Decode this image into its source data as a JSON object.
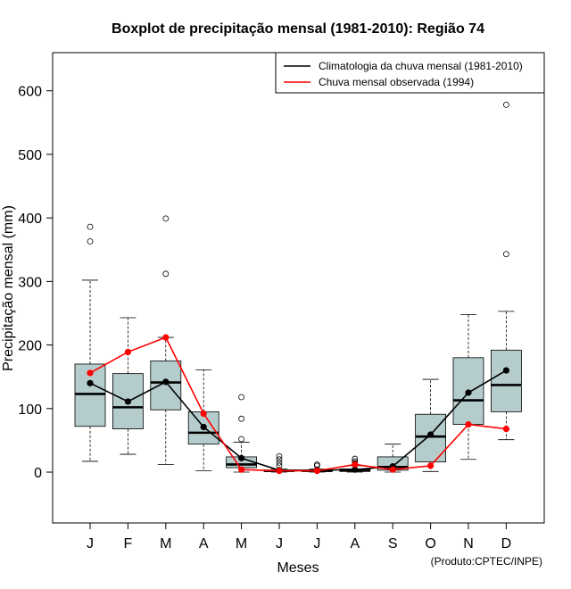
{
  "chart_data": {
    "type": "boxplot",
    "title": "Boxplot de precipitação mensal (1981-2010): Região 74",
    "xlabel": "Meses",
    "ylabel": "Precipitação mensal (mm)",
    "ylim": [
      -80,
      660
    ],
    "yticks": [
      0,
      100,
      200,
      300,
      400,
      500,
      600
    ],
    "categories": [
      "J",
      "F",
      "M",
      "A",
      "M",
      "J",
      "J",
      "A",
      "S",
      "O",
      "N",
      "D"
    ],
    "box_color": "#b5cccc",
    "boxes": [
      {
        "whisker_low": 17,
        "q1": 72,
        "median": 123,
        "q3": 170,
        "whisker_high": 302,
        "outliers": [
          363,
          386
        ]
      },
      {
        "whisker_low": 28,
        "q1": 68,
        "median": 102,
        "q3": 155,
        "whisker_high": 243,
        "outliers": []
      },
      {
        "whisker_low": 12,
        "q1": 98,
        "median": 141,
        "q3": 175,
        "whisker_high": 212,
        "outliers": [
          312,
          399
        ]
      },
      {
        "whisker_low": 2,
        "q1": 44,
        "median": 62,
        "q3": 95,
        "whisker_high": 161,
        "outliers": []
      },
      {
        "whisker_low": 0,
        "q1": 7,
        "median": 12,
        "q3": 24,
        "whisker_high": 47,
        "outliers": [
          52,
          84,
          118
        ]
      },
      {
        "whisker_low": 0,
        "q1": 1,
        "median": 2,
        "q3": 3,
        "whisker_high": 5,
        "outliers": [
          10,
          15,
          20,
          25
        ]
      },
      {
        "whisker_low": 0,
        "q1": 1,
        "median": 2,
        "q3": 3,
        "whisker_high": 5,
        "outliers": [
          10,
          12
        ]
      },
      {
        "whisker_low": 0,
        "q1": 1,
        "median": 3,
        "q3": 5,
        "whisker_high": 10,
        "outliers": [
          14,
          17,
          21
        ]
      },
      {
        "whisker_low": 0,
        "q1": 3,
        "median": 8,
        "q3": 24,
        "whisker_high": 44,
        "outliers": []
      },
      {
        "whisker_low": 1,
        "q1": 16,
        "median": 56,
        "q3": 91,
        "whisker_high": 146,
        "outliers": []
      },
      {
        "whisker_low": 20,
        "q1": 75,
        "median": 113,
        "q3": 180,
        "whisker_high": 248,
        "outliers": []
      },
      {
        "whisker_low": 51,
        "q1": 95,
        "median": 137,
        "q3": 192,
        "whisker_high": 253,
        "outliers": [
          343,
          578
        ]
      }
    ],
    "series": [
      {
        "name": "Climatologia da chuva mensal (1981-2010)",
        "color": "#000000",
        "values": [
          140,
          111,
          142,
          71,
          22,
          3,
          3,
          4,
          9,
          59,
          125,
          160
        ]
      },
      {
        "name": "Chuva mensal observada (1994)",
        "color": "#ff0000",
        "values": [
          156,
          189,
          212,
          92,
          4,
          2,
          2,
          12,
          4,
          10,
          75,
          68
        ]
      }
    ],
    "legend_position": "top-right",
    "credit": "(Produto:CPTEC/INPE)"
  }
}
